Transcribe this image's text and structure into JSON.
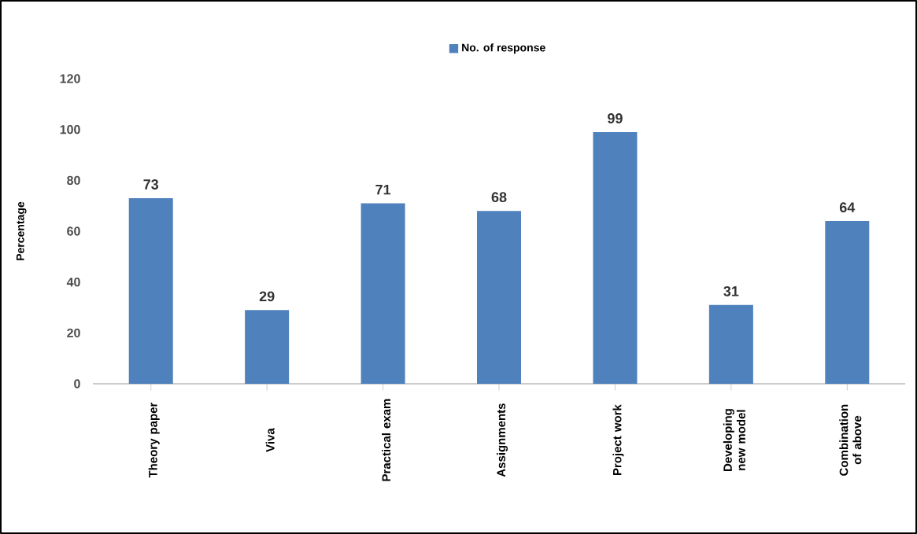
{
  "chart_data": {
    "type": "bar",
    "ylabel": "Percentage",
    "categories": [
      "Theory paper",
      "Viva",
      "Practical exam",
      "Assignments",
      "Project work",
      "Developing new model",
      "Combination of above"
    ],
    "series": [
      {
        "name": "No. of response",
        "color": "#4f81bd",
        "values": [
          73,
          29,
          71,
          68,
          99,
          31,
          64
        ]
      }
    ],
    "ylim": [
      0,
      120
    ],
    "yticks": [
      0,
      20,
      40,
      60,
      80,
      100,
      120
    ],
    "data_labels": true,
    "legend": "top",
    "grid": false
  }
}
